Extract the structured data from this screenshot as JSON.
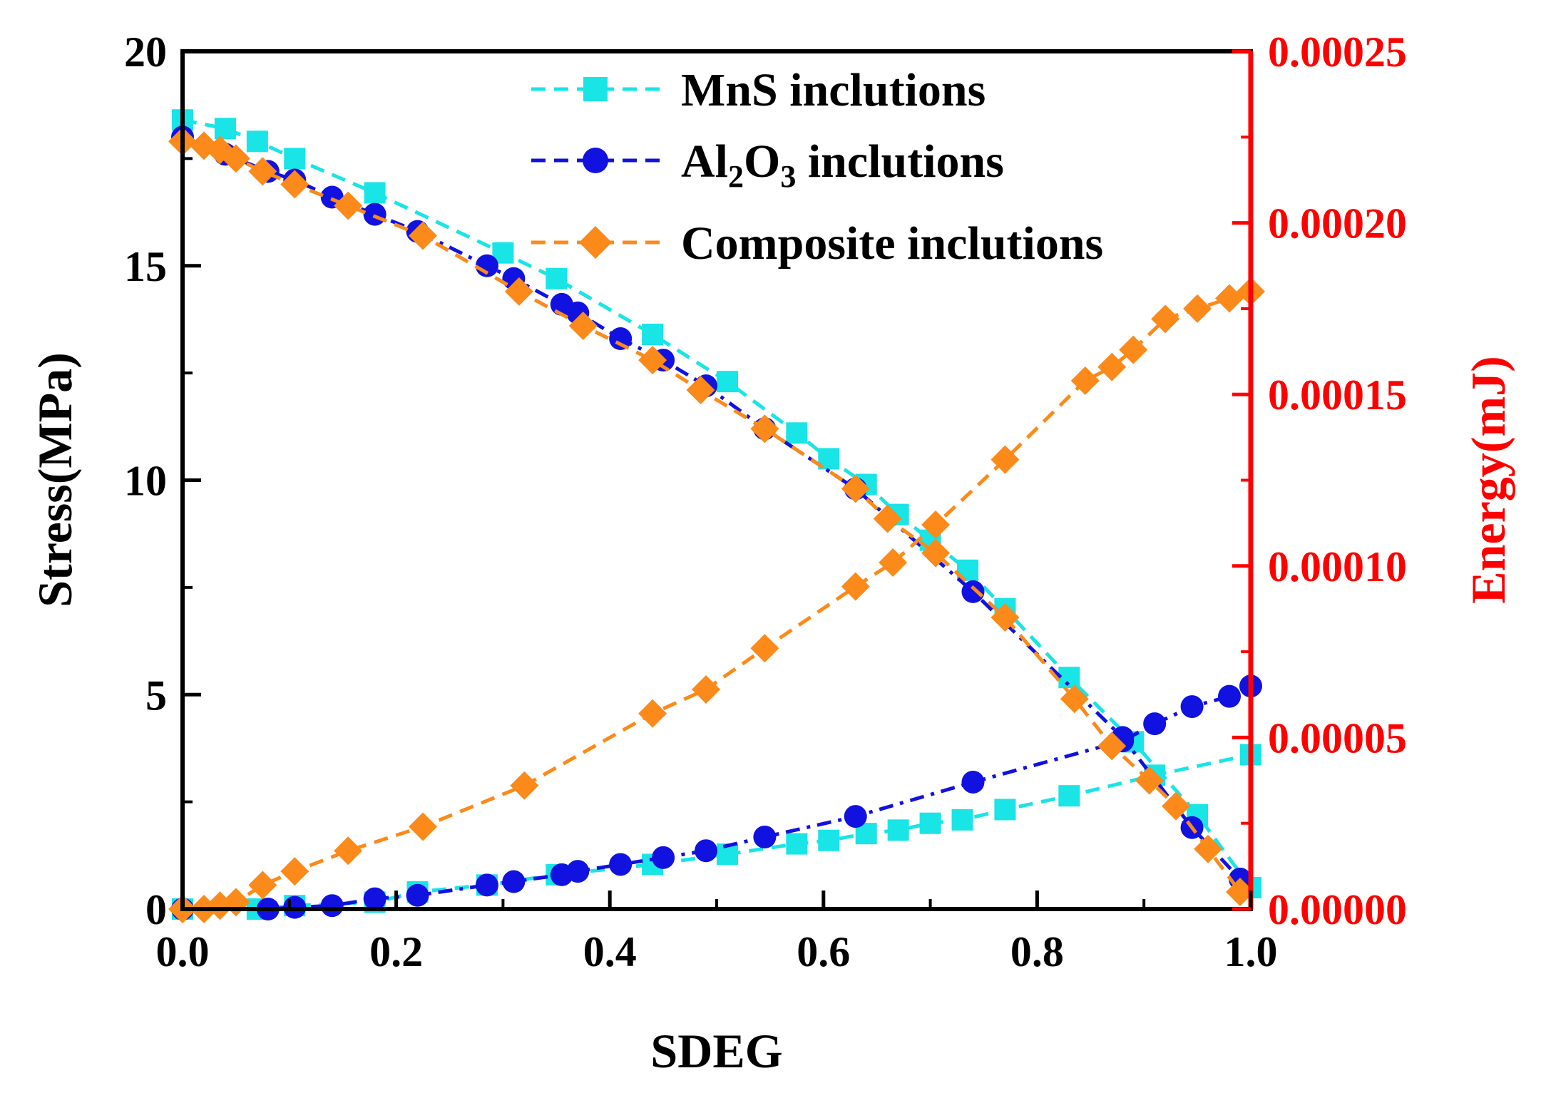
{
  "chart_data": {
    "type": "line",
    "xlabel": "SDEG",
    "ylabel": "Stress(MPa)",
    "y2label": "Energy(mJ)",
    "xlim": [
      0.0,
      1.0
    ],
    "ylim": [
      0,
      20
    ],
    "y2lim": [
      0.0,
      0.00025
    ],
    "x_ticks": [
      "0.0",
      "0.2",
      "0.4",
      "0.6",
      "0.8",
      "1.0"
    ],
    "y_ticks": [
      "0",
      "5",
      "10",
      "15",
      "20"
    ],
    "y2_ticks": [
      "0.00000",
      "0.00005",
      "0.00010",
      "0.00015",
      "0.00020",
      "0.00025"
    ],
    "legend_position": "top-center",
    "legend": [
      {
        "label": "MnS inclutions",
        "sub": ""
      },
      {
        "label": "Al",
        "sub": "2",
        "label2": "O",
        "sub2": "3",
        "label3": " inclutions"
      },
      {
        "label": "Composite inclutions",
        "sub": ""
      }
    ],
    "colors": {
      "mns": "#19e4e6",
      "al2o3": "#1111e0",
      "composite": "#fb8a1a",
      "right_axis": "#ff0000"
    },
    "series": [
      {
        "name": "MnS inclutions",
        "kind": "stress",
        "marker": "square",
        "x": [
          0.0,
          0.04,
          0.07,
          0.105,
          0.18,
          0.3,
          0.35,
          0.44,
          0.51,
          0.575,
          0.605,
          0.64,
          0.67,
          0.7,
          0.735,
          0.77,
          0.83,
          0.89,
          0.95,
          1.0
        ],
        "y": [
          18.4,
          18.2,
          17.9,
          17.5,
          16.7,
          15.3,
          14.7,
          13.4,
          12.3,
          11.1,
          10.5,
          9.9,
          9.2,
          8.6,
          7.9,
          7.0,
          5.4,
          3.9,
          2.2,
          0.5
        ]
      },
      {
        "name": "MnS inclutions",
        "kind": "energy",
        "marker": "square",
        "x": [
          0.0,
          0.07,
          0.105,
          0.18,
          0.22,
          0.285,
          0.35,
          0.44,
          0.51,
          0.575,
          0.605,
          0.64,
          0.67,
          0.7,
          0.73,
          0.77,
          0.83,
          0.91,
          1.0
        ],
        "y": [
          0.0,
          0.0,
          1e-06,
          2e-06,
          5e-06,
          7e-06,
          1e-05,
          1.3e-05,
          1.6e-05,
          1.9e-05,
          2e-05,
          2.2e-05,
          2.3e-05,
          2.5e-05,
          2.6e-05,
          2.9e-05,
          3.3e-05,
          3.9e-05,
          4.5e-05
        ]
      },
      {
        "name": "Al2O3 inclutions",
        "kind": "stress",
        "marker": "circle",
        "x": [
          0.0,
          0.04,
          0.08,
          0.105,
          0.14,
          0.18,
          0.22,
          0.285,
          0.31,
          0.355,
          0.37,
          0.41,
          0.45,
          0.49,
          0.545,
          0.63,
          0.74,
          0.88,
          0.945,
          0.99
        ],
        "y": [
          18.0,
          17.6,
          17.2,
          17.0,
          16.6,
          16.2,
          15.8,
          15.0,
          14.7,
          14.1,
          13.9,
          13.3,
          12.8,
          12.2,
          11.2,
          9.8,
          7.4,
          4.0,
          1.9,
          0.7
        ]
      },
      {
        "name": "Al2O3 inclutions",
        "kind": "energy",
        "marker": "circle",
        "x": [
          0.0,
          0.08,
          0.105,
          0.14,
          0.18,
          0.22,
          0.285,
          0.31,
          0.355,
          0.37,
          0.41,
          0.45,
          0.49,
          0.545,
          0.63,
          0.74,
          0.88,
          0.91,
          0.945,
          0.98,
          1.0
        ],
        "y": [
          0.0,
          0.0,
          5e-07,
          1e-06,
          3e-06,
          4e-06,
          7e-06,
          8e-06,
          1e-05,
          1.1e-05,
          1.3e-05,
          1.5e-05,
          1.7e-05,
          2.1e-05,
          2.7e-05,
          3.7e-05,
          4.9e-05,
          5.4e-05,
          5.9e-05,
          6.2e-05,
          6.5e-05
        ]
      },
      {
        "name": "Composite inclutions",
        "kind": "stress",
        "marker": "diamond",
        "x": [
          0.0,
          0.02,
          0.035,
          0.05,
          0.075,
          0.105,
          0.155,
          0.225,
          0.315,
          0.375,
          0.44,
          0.485,
          0.545,
          0.63,
          0.66,
          0.705,
          0.77,
          0.835,
          0.87,
          0.905,
          0.93,
          0.96,
          0.99
        ],
        "y": [
          17.9,
          17.8,
          17.7,
          17.5,
          17.2,
          16.9,
          16.4,
          15.7,
          14.4,
          13.6,
          12.8,
          12.1,
          11.2,
          9.8,
          9.1,
          8.3,
          6.8,
          4.9,
          3.8,
          3.0,
          2.4,
          1.4,
          0.4
        ]
      },
      {
        "name": "Composite inclutions",
        "kind": "energy",
        "marker": "diamond",
        "x": [
          0.0,
          0.02,
          0.035,
          0.05,
          0.075,
          0.105,
          0.155,
          0.225,
          0.32,
          0.44,
          0.49,
          0.545,
          0.63,
          0.665,
          0.705,
          0.77,
          0.845,
          0.87,
          0.89,
          0.92,
          0.95,
          0.98,
          1.0
        ],
        "y": [
          0.0,
          0.0,
          1e-06,
          2e-06,
          7e-06,
          1.1e-05,
          1.7e-05,
          2.4e-05,
          3.6e-05,
          5.7e-05,
          6.4e-05,
          7.6e-05,
          9.4e-05,
          0.000101,
          0.000112,
          0.000131,
          0.000154,
          0.000158,
          0.000163,
          0.000172,
          0.000175,
          0.000178,
          0.00018
        ]
      }
    ]
  }
}
